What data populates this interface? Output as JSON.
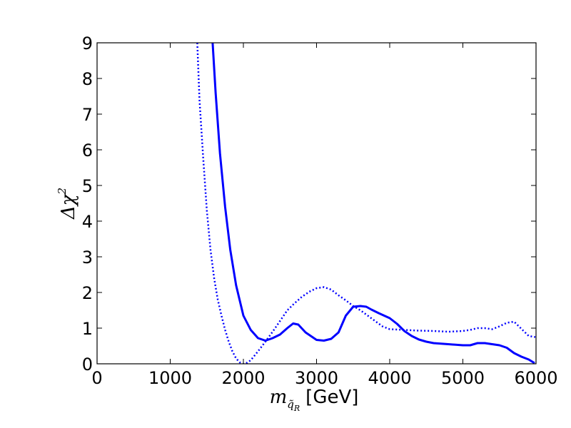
{
  "chart_data": {
    "type": "line",
    "title": "",
    "xlabel": {
      "symbol": "m",
      "subscript": "q̃",
      "subsubscript": "R",
      "unit": "[GeV]"
    },
    "ylabel": {
      "symbol": "Δχ",
      "superscript": "2"
    },
    "xlim": [
      0,
      6000
    ],
    "ylim": [
      0,
      9
    ],
    "xticks": [
      0,
      1000,
      2000,
      3000,
      4000,
      5000,
      6000
    ],
    "xtick_labels": [
      "0",
      "1000",
      "2000",
      "3000",
      "4000",
      "5000",
      "6000"
    ],
    "yticks": [
      0,
      1,
      2,
      3,
      4,
      5,
      6,
      7,
      8,
      9
    ],
    "ytick_labels": [
      "0",
      "1",
      "2",
      "3",
      "4",
      "5",
      "6",
      "7",
      "8",
      "9"
    ],
    "grid": false,
    "series": [
      {
        "name": "solid",
        "style": "solid",
        "color": "#0000ff",
        "x": [
          1580,
          1620,
          1680,
          1750,
          1820,
          1900,
          2000,
          2100,
          2200,
          2300,
          2400,
          2500,
          2600,
          2680,
          2750,
          2850,
          3000,
          3100,
          3200,
          3300,
          3400,
          3500,
          3600,
          3680,
          3750,
          3850,
          4000,
          4100,
          4200,
          4300,
          4400,
          4500,
          4600,
          4800,
          5000,
          5100,
          5200,
          5300,
          5400,
          5500,
          5600,
          5700,
          5800,
          5900,
          5980
        ],
        "y": [
          9.0,
          7.6,
          5.9,
          4.4,
          3.2,
          2.2,
          1.35,
          0.95,
          0.72,
          0.65,
          0.72,
          0.82,
          1.0,
          1.13,
          1.1,
          0.88,
          0.67,
          0.65,
          0.7,
          0.88,
          1.35,
          1.6,
          1.62,
          1.6,
          1.52,
          1.42,
          1.28,
          1.12,
          0.92,
          0.78,
          0.68,
          0.62,
          0.58,
          0.55,
          0.52,
          0.52,
          0.58,
          0.58,
          0.55,
          0.52,
          0.45,
          0.3,
          0.2,
          0.12,
          0.02
        ]
      },
      {
        "name": "dotted",
        "style": "dotted",
        "color": "#0000ff",
        "x": [
          1370,
          1400,
          1450,
          1500,
          1550,
          1600,
          1650,
          1700,
          1750,
          1800,
          1850,
          1900,
          1950,
          2000,
          2050,
          2100,
          2200,
          2300,
          2400,
          2500,
          2600,
          2700,
          2800,
          2900,
          3000,
          3100,
          3200,
          3300,
          3400,
          3500,
          3600,
          3700,
          3800,
          3900,
          4000,
          4200,
          4400,
          4600,
          4800,
          5000,
          5100,
          5200,
          5300,
          5400,
          5500,
          5600,
          5700,
          5800,
          5900,
          5990
        ],
        "y": [
          9.0,
          7.4,
          5.8,
          4.3,
          3.2,
          2.4,
          1.8,
          1.35,
          0.95,
          0.62,
          0.35,
          0.15,
          0.04,
          0.0,
          0.03,
          0.1,
          0.35,
          0.62,
          0.9,
          1.2,
          1.5,
          1.7,
          1.88,
          2.02,
          2.12,
          2.15,
          2.08,
          1.92,
          1.78,
          1.62,
          1.5,
          1.35,
          1.2,
          1.05,
          0.97,
          0.95,
          0.93,
          0.92,
          0.9,
          0.92,
          0.95,
          1.0,
          1.0,
          0.97,
          1.05,
          1.15,
          1.18,
          0.98,
          0.78,
          0.75
        ]
      }
    ]
  }
}
